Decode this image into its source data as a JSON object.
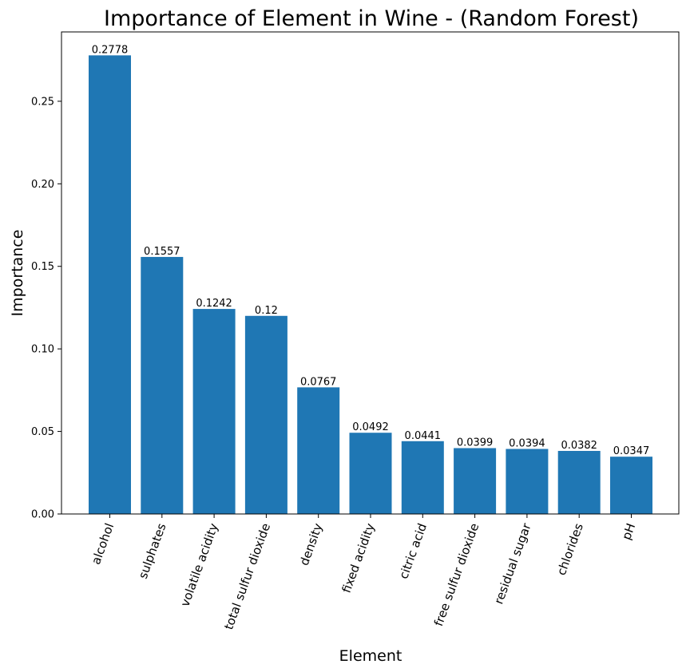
{
  "chart_data": {
    "type": "bar",
    "title": "Importance of Element in Wine - (Random Forest)",
    "xlabel": "Element",
    "ylabel": "Importance",
    "categories": [
      "alcohol",
      "sulphates",
      "volatile acidity",
      "total sulfur dioxide",
      "density",
      "fixed acidity",
      "citric acid",
      "free sulfur dioxide",
      "residual sugar",
      "chlorides",
      "pH"
    ],
    "values": [
      0.2778,
      0.1557,
      0.1242,
      0.12,
      0.0767,
      0.0492,
      0.0441,
      0.0399,
      0.0394,
      0.0382,
      0.0347
    ],
    "value_labels": [
      "0.2778",
      "0.1557",
      "0.1242",
      "0.12",
      "0.0767",
      "0.0492",
      "0.0441",
      "0.0399",
      "0.0394",
      "0.0382",
      "0.0347"
    ],
    "ylim": [
      0,
      0.292
    ],
    "yticks": [
      0.0,
      0.05,
      0.1,
      0.15,
      0.2,
      0.25
    ],
    "ytick_labels": [
      "0.00",
      "0.05",
      "0.10",
      "0.15",
      "0.20",
      "0.25"
    ],
    "xtick_rotation_deg": 70,
    "grid": false,
    "colors": {
      "bar": "#1f77b4"
    }
  }
}
